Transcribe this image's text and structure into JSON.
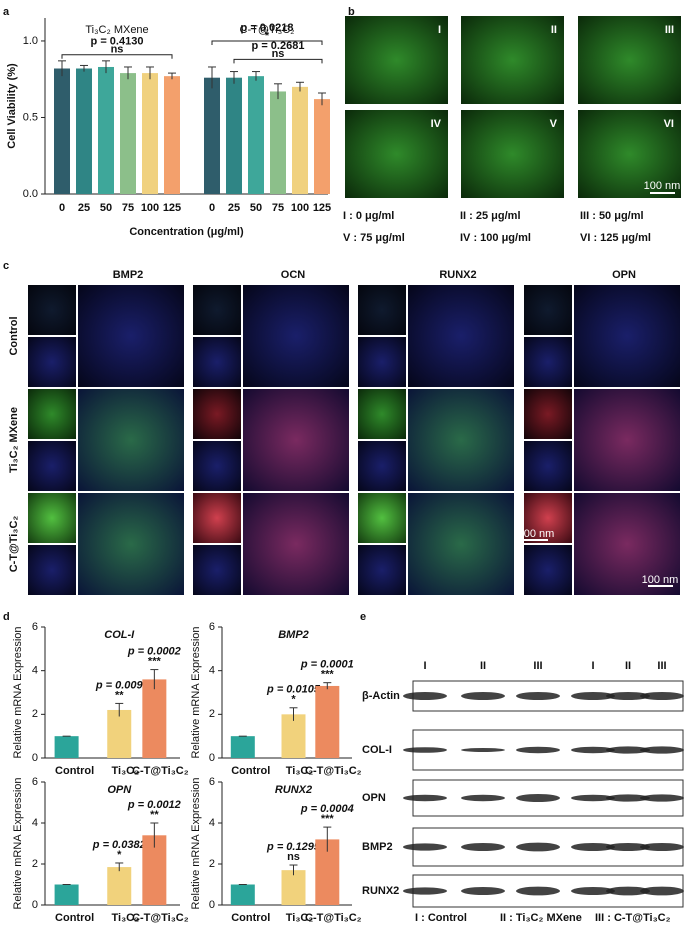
{
  "panels": [
    "a",
    "b",
    "c",
    "d",
    "e"
  ],
  "chart_data": [
    {
      "type": "bar",
      "y_label": "Cell Viability (%)",
      "x_label": "Concentration (μg/ml)",
      "categories": [
        "0",
        "25",
        "50",
        "75",
        "100",
        "125"
      ],
      "colors": [
        "#2f5d6b",
        "#2f8585",
        "#3ea79a",
        "#8cbf8a",
        "#f0d17f",
        "#f3a06c"
      ],
      "series": [
        {
          "name": "Ti₃C₂ MXene",
          "values": [
            0.82,
            0.82,
            0.83,
            0.79,
            0.79,
            0.77
          ],
          "errors": [
            0.05,
            0.02,
            0.04,
            0.04,
            0.04,
            0.02
          ]
        },
        {
          "name": "C-T@Ti₃C₂",
          "values": [
            0.76,
            0.76,
            0.77,
            0.67,
            0.7,
            0.62
          ],
          "errors": [
            0.07,
            0.04,
            0.03,
            0.05,
            0.03,
            0.04
          ]
        }
      ],
      "ylim": [
        0,
        1.15
      ],
      "yticks": [
        {
          "value": 0,
          "label": "0.0"
        },
        {
          "value": 0.5,
          "label": "0.5"
        },
        {
          "value": 1,
          "label": "1.0"
        }
      ],
      "comparisons": [
        {
          "p": "p = 0.4130",
          "sig": "ns"
        },
        {
          "p": "p = 0.0218",
          "sig": "*"
        },
        {
          "p": "p = 0.2681",
          "sig": "ns"
        }
      ]
    },
    {
      "type": "bar",
      "title": "COL-I",
      "y_label": "Relative mRNA Expression",
      "categories": [
        "Control",
        "Ti₃C₂",
        "C-T@Ti₃C₂"
      ],
      "colors": [
        "#2ba59a",
        "#f1d27c",
        "#ec8a5f"
      ],
      "values": [
        1,
        2.2,
        3.6
      ],
      "errors": [
        0,
        0.3,
        0.45
      ],
      "p_labels": [
        null,
        "p = 0.009",
        "p = 0.0002"
      ],
      "sig_labels": [
        null,
        "**",
        "***"
      ],
      "ylim": [
        0,
        6
      ],
      "yticks": [
        0,
        2,
        4,
        6
      ]
    },
    {
      "type": "bar",
      "title": "BMP2",
      "y_label": "Relative mRNA Expression",
      "categories": [
        "Control",
        "Ti₃C₂",
        "C-T@Ti₃C₂"
      ],
      "colors": [
        "#2ba59a",
        "#f1d27c",
        "#ec8a5f"
      ],
      "values": [
        1,
        2.0,
        3.3
      ],
      "errors": [
        0,
        0.3,
        0.15
      ],
      "p_labels": [
        null,
        "p = 0.0105",
        "p = 0.0001"
      ],
      "sig_labels": [
        null,
        "*",
        "***"
      ],
      "ylim": [
        0,
        6
      ],
      "yticks": [
        0,
        2,
        4,
        6
      ]
    },
    {
      "type": "bar",
      "title": "OPN",
      "y_label": "Relative mRNA Expression",
      "categories": [
        "Control",
        "Ti₃C₂",
        "C-T@Ti₃C₂"
      ],
      "colors": [
        "#2ba59a",
        "#f1d27c",
        "#ec8a5f"
      ],
      "values": [
        1,
        1.85,
        3.4
      ],
      "errors": [
        0,
        0.2,
        0.6
      ],
      "p_labels": [
        null,
        "p = 0.0382",
        "p = 0.0012"
      ],
      "sig_labels": [
        null,
        "*",
        "**"
      ],
      "ylim": [
        0,
        6
      ],
      "yticks": [
        0,
        2,
        4,
        6
      ]
    },
    {
      "type": "bar",
      "title": "RUNX2",
      "y_label": "Relative mRNA Expression",
      "categories": [
        "Control",
        "Ti₃C₂",
        "C-T@Ti₃C₂"
      ],
      "colors": [
        "#2ba59a",
        "#f1d27c",
        "#ec8a5f"
      ],
      "values": [
        1,
        1.7,
        3.2
      ],
      "errors": [
        0,
        0.25,
        0.6
      ],
      "p_labels": [
        null,
        "p = 0.1295",
        "p = 0.0004"
      ],
      "sig_labels": [
        null,
        "ns",
        "***"
      ],
      "ylim": [
        0,
        6
      ],
      "yticks": [
        0,
        2,
        4,
        6
      ]
    }
  ],
  "panel_b": {
    "images": [
      "I",
      "II",
      "III",
      "IV",
      "V",
      "VI"
    ],
    "scale": "100 nm",
    "legend": [
      "I : 0 μg/ml",
      "II : 25 μg/ml",
      "III : 50 μg/ml",
      "V : 75 μg/ml",
      "IV : 100 μg/ml",
      "VI : 125 μg/ml"
    ]
  },
  "panel_c": {
    "columns": [
      "BMP2",
      "OCN",
      "RUNX2",
      "OPN"
    ],
    "rows": [
      "Control",
      "Ti₃C₂ MXene",
      "C-T@Ti₃C₂"
    ],
    "scales": [
      "100 nm",
      "100 nm"
    ]
  },
  "panel_e": {
    "lanes": [
      "I",
      "II",
      "III",
      "I",
      "II",
      "III"
    ],
    "rows": [
      "β-Actin",
      "COL-I",
      "OPN",
      "BMP2",
      "RUNX2"
    ],
    "legend": [
      "I : Control",
      "II : Ti₃C₂ MXene",
      "III : C-T@Ti₃C₂"
    ]
  }
}
